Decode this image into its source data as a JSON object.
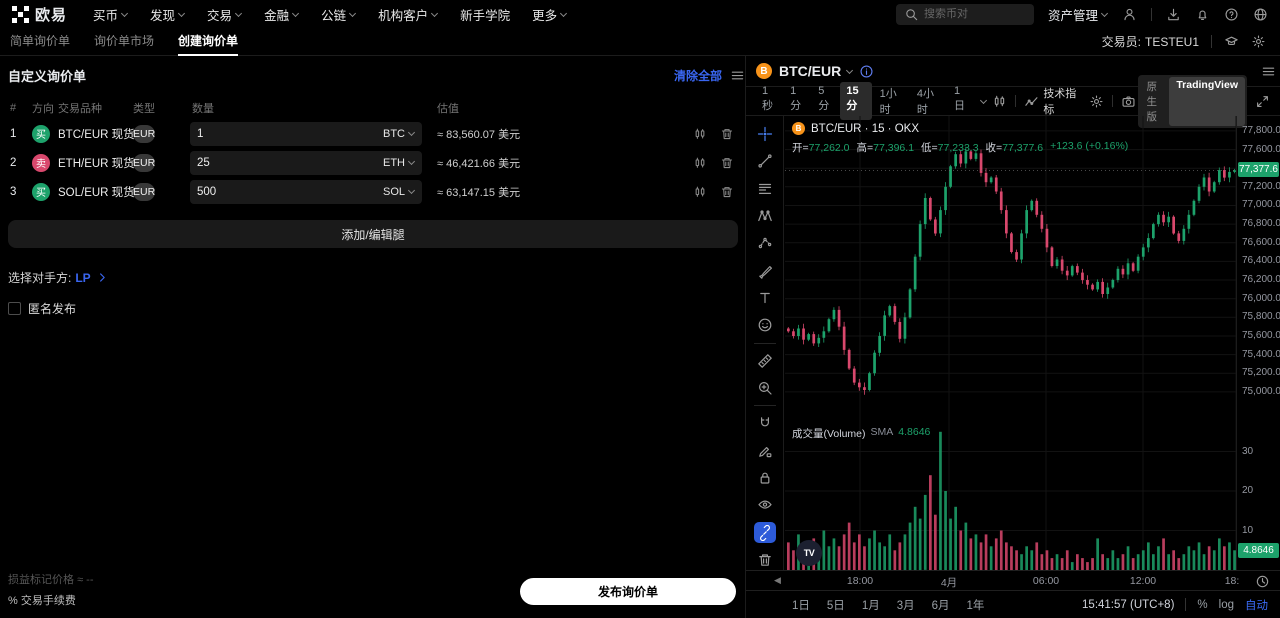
{
  "brand": {
    "logo_text": "欧易"
  },
  "theme": {
    "up": "#1da26b",
    "down": "#d9486d",
    "accent": "#3a66f0",
    "badge_green": "#1da26b",
    "bitcoin_orange": "#f7931a"
  },
  "top_nav": {
    "items": [
      {
        "label": "买币",
        "chevron": true
      },
      {
        "label": "发现",
        "chevron": true
      },
      {
        "label": "交易",
        "chevron": true
      },
      {
        "label": "金融",
        "chevron": true
      },
      {
        "label": "公链",
        "chevron": true
      },
      {
        "label": "机构客户",
        "chevron": true
      },
      {
        "label": "新手学院",
        "chevron": false
      },
      {
        "label": "更多",
        "chevron": true
      }
    ],
    "search_placeholder": "搜索币对",
    "asset_mgmt_label": "资产管理",
    "right_icons": [
      "user-icon",
      "download-icon",
      "bell-icon",
      "help-icon",
      "globe-icon"
    ]
  },
  "sub_nav": {
    "tabs": [
      {
        "label": "简单询价单",
        "active": false
      },
      {
        "label": "询价单市场",
        "active": false
      },
      {
        "label": "创建询价单",
        "active": true
      }
    ],
    "trader_label": "交易员:",
    "trader_value": "TESTEU1"
  },
  "rfq": {
    "title": "自定义询价单",
    "clear_all": "清除全部",
    "columns": [
      "#",
      "方向",
      "交易品种",
      "类型",
      "数量",
      "估值"
    ],
    "rows": [
      {
        "index": "1",
        "direction": "买",
        "side": "buy",
        "pair": "BTC/EUR 现货",
        "type": "EUR",
        "amount": "1",
        "currency": "BTC",
        "valuation": "≈ 83,560.07 美元"
      },
      {
        "index": "2",
        "direction": "卖",
        "side": "sell",
        "pair": "ETH/EUR 现货",
        "type": "EUR",
        "amount": "25",
        "currency": "ETH",
        "valuation": "≈ 46,421.66 美元"
      },
      {
        "index": "3",
        "direction": "买",
        "side": "buy",
        "pair": "SOL/EUR 现货",
        "type": "EUR",
        "amount": "500",
        "currency": "SOL",
        "valuation": "≈ 63,147.15 美元"
      }
    ],
    "add_button": "添加/编辑腿",
    "counterparty_label": "选择对手方:",
    "counterparty_value": "LP",
    "anonymous_label": "匿名发布",
    "pnl_label": "损益标记价格",
    "pnl_value": "≈ --",
    "fee_label": "% 交易手续费",
    "publish_button": "发布询价单"
  },
  "chart": {
    "pair": "BTC/EUR",
    "legend": "BTC/EUR · 15 · OKX",
    "ohlc": {
      "open_label": "开=",
      "open": "77,262.0",
      "high_label": "高=",
      "high": "77,396.1",
      "low_label": "低=",
      "low": "77,233.3",
      "close_label": "收=",
      "close": "77,377.6",
      "change": "+123.6 (+0.16%)"
    },
    "timeframes": [
      "1秒",
      "1分",
      "5分",
      "15分",
      "1小时",
      "4小时",
      "1日"
    ],
    "active_timeframe": "15分",
    "indicators_label": "技术指标",
    "native_label": "原生版",
    "tv_label": "TradingView",
    "volume_label": "成交量(Volume)",
    "sma_label": "SMA",
    "sma_value": "4.8646",
    "current_price_label": "77,377.6",
    "range_buttons": [
      "1日",
      "5日",
      "1月",
      "3月",
      "6月",
      "1年"
    ],
    "clock": "15:41:57 (UTC+8)",
    "percent_label": "%",
    "log_label": "log",
    "auto_label": "自动",
    "tools": [
      "crosshair",
      "trendline",
      "fib",
      "xabcd",
      "forecast",
      "brush",
      "textT",
      "emoji",
      "divider",
      "ruler",
      "zoomin",
      "divider",
      "magnet",
      "drawlock",
      "lock",
      "eyeedit",
      "link",
      "trash"
    ],
    "active_tool": "link"
  },
  "chart_data": {
    "type": "candlestick",
    "pair": "BTC/EUR",
    "timeframe_minutes": 15,
    "exchange": "OKX",
    "current_price": 77377.6,
    "ohlc": {
      "open": 77262.0,
      "high": 77396.1,
      "low": 77233.3,
      "close": 77377.6,
      "change": 123.6,
      "change_pct": "+0.16%"
    },
    "sma_volume": 4.8646,
    "price_axis_labels": [
      77800,
      77600,
      77200,
      77000,
      76800,
      76600,
      76400,
      76200,
      76000,
      75800,
      75600,
      75400,
      75200,
      75000
    ],
    "volume_axis_labels": [
      30,
      20,
      10
    ],
    "x_labels": [
      "18:00",
      "4月",
      "06:00",
      "12:00",
      "18:"
    ],
    "closes": [
      75650,
      75600,
      75680,
      75560,
      75620,
      75520,
      75580,
      75650,
      75780,
      75880,
      75700,
      75450,
      75250,
      75100,
      75050,
      75020,
      75200,
      75420,
      75600,
      75820,
      75920,
      75750,
      75570,
      75800,
      76100,
      76450,
      76800,
      77080,
      76850,
      76700,
      76950,
      77200,
      77420,
      77550,
      77450,
      77580,
      77500,
      77560,
      77350,
      77250,
      77300,
      77150,
      76950,
      76700,
      76500,
      76420,
      76700,
      76950,
      77050,
      76900,
      76750,
      76550,
      76350,
      76420,
      76300,
      76250,
      76350,
      76280,
      76200,
      76150,
      76100,
      76180,
      76050,
      76120,
      76200,
      76320,
      76260,
      76380,
      76300,
      76450,
      76550,
      76650,
      76800,
      76900,
      76820,
      76880,
      76700,
      76620,
      76750,
      76900,
      77050,
      77200,
      77300,
      77150,
      77250,
      77380,
      77300,
      77360,
      77377.6
    ],
    "volumes": [
      7,
      5,
      9,
      4,
      6,
      8,
      5,
      10,
      6,
      8,
      6,
      9,
      12,
      7,
      9,
      6,
      8,
      10,
      7,
      6,
      9,
      5,
      7,
      9,
      12,
      16,
      13,
      19,
      24,
      14,
      35,
      20,
      13,
      16,
      10,
      12,
      8,
      9,
      7,
      9,
      6,
      8,
      10,
      7,
      6,
      5,
      4,
      6,
      5,
      7,
      4,
      5,
      3,
      4,
      3,
      5,
      2,
      4,
      3,
      2,
      3,
      8,
      4,
      3,
      5,
      3,
      4,
      6,
      3,
      4,
      5,
      7,
      4,
      6,
      8,
      4,
      5,
      3,
      4,
      6,
      5,
      7,
      4,
      6,
      5,
      8,
      6,
      7,
      5
    ]
  }
}
